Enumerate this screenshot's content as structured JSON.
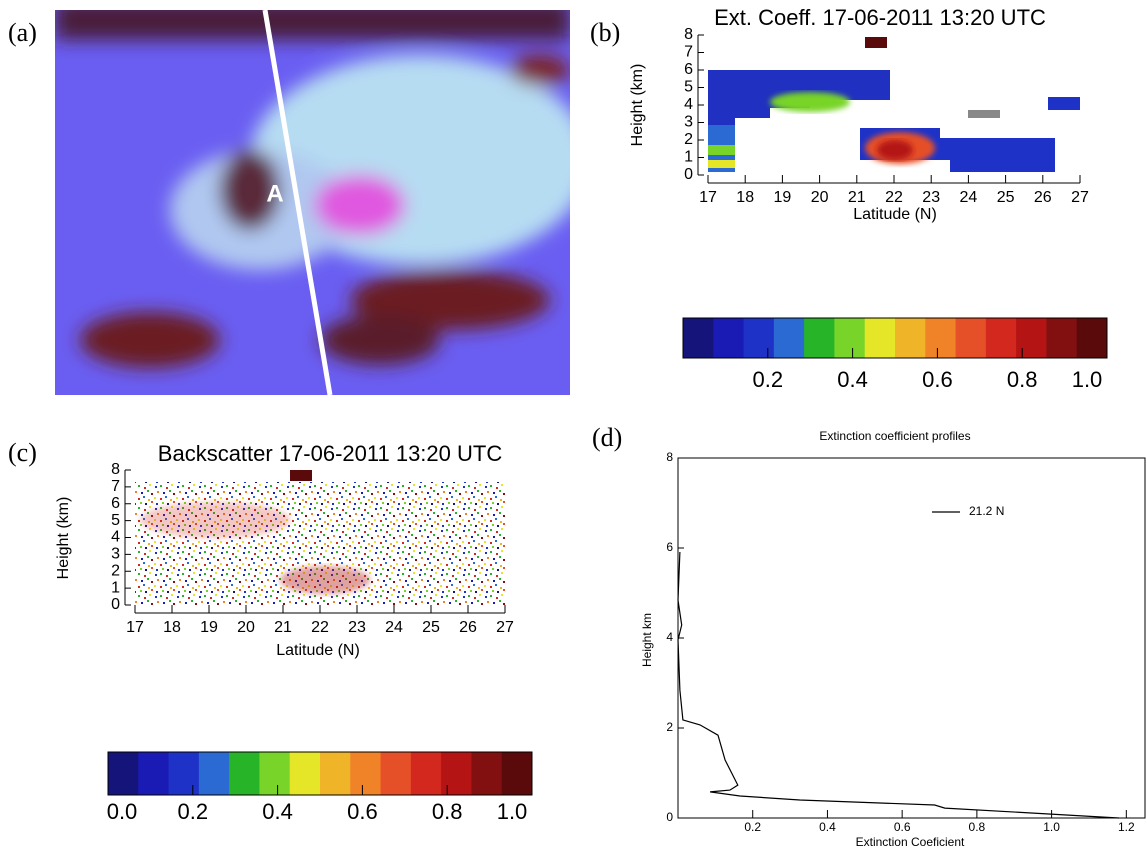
{
  "chart_data": [
    {
      "type": "image",
      "panel_label": "(a)",
      "annotations": [
        "A"
      ]
    },
    {
      "type": "curtain",
      "panel_label": "(b)",
      "title": "Ext. Coeff. 17-06-2011 13:20 UTC",
      "x_label": "Latitude (N)",
      "y_label": "Height (km)",
      "xlim": [
        17,
        27
      ],
      "xticks": [
        17,
        18,
        19,
        20,
        21,
        22,
        23,
        24,
        25,
        26,
        27
      ],
      "ylim": [
        0,
        8
      ],
      "yticks": [
        0,
        1,
        2,
        3,
        4,
        5,
        6,
        7,
        8
      ],
      "colorbar": {
        "lim": [
          0,
          1
        ],
        "ticks": [
          0.2,
          0.4,
          0.6,
          0.8,
          {
            "value": 1,
            "label": "1.0"
          }
        ],
        "colors": [
          "#14147a",
          "#1a1ab4",
          "#1e32c8",
          "#2a6ad2",
          "#28b428",
          "#78d428",
          "#e6e628",
          "#f0b428",
          "#f08228",
          "#e65028",
          "#d2281e",
          "#b41414",
          "#821010",
          "#5a0a0a"
        ]
      }
    },
    {
      "type": "curtain",
      "panel_label": "(c)",
      "title": "Backscatter 17-06-2011 13:20 UTC",
      "x_label": "Latitude (N)",
      "y_label": "Height (km)",
      "xlim": [
        17,
        27
      ],
      "xticks": [
        17,
        18,
        19,
        20,
        21,
        22,
        23,
        24,
        25,
        26,
        27
      ],
      "ylim": [
        0,
        8
      ],
      "yticks": [
        0,
        1,
        2,
        3,
        4,
        5,
        6,
        7,
        8
      ],
      "colorbar": {
        "lim": [
          0,
          1
        ],
        "ticks": [
          {
            "value": 0,
            "label": "0.0"
          },
          0.2,
          0.4,
          0.6,
          0.8,
          {
            "value": 1,
            "label": "1.0"
          }
        ],
        "colors": [
          "#14147a",
          "#1a1ab4",
          "#1e32c8",
          "#2a6ad2",
          "#28b428",
          "#78d428",
          "#e6e628",
          "#f0b428",
          "#f08228",
          "#e65028",
          "#d2281e",
          "#b41414",
          "#821010",
          "#5a0a0a"
        ]
      }
    },
    {
      "type": "line",
      "panel_label": "(d)",
      "title": "Extinction coefficient profiles",
      "x_label": "Extinction Coeficient",
      "y_label": "Height km",
      "x": [
        0.005,
        0.0,
        0.01,
        0.0,
        0.005,
        0.013,
        0.059,
        0.107,
        0.126,
        0.16,
        0.139,
        0.086,
        0.166,
        0.326,
        0.687,
        0.714,
        1.18
      ],
      "series": [
        {
          "name": "21.2 N",
          "color": "#000000",
          "values": [
            5.91,
            4.84,
            4.29,
            3.96,
            2.84,
            2.18,
            2.07,
            1.84,
            1.29,
            0.73,
            0.62,
            0.58,
            0.49,
            0.4,
            0.29,
            0.22,
            0.0
          ]
        }
      ],
      "xlim": [
        0,
        1.25
      ],
      "xticks": [
        0.2,
        0.4,
        0.6,
        0.8,
        {
          "value": 1,
          "label": "1.0"
        },
        1.2
      ],
      "ylim": [
        0,
        8
      ],
      "yticks": [
        0,
        2,
        4,
        6,
        8
      ]
    }
  ]
}
